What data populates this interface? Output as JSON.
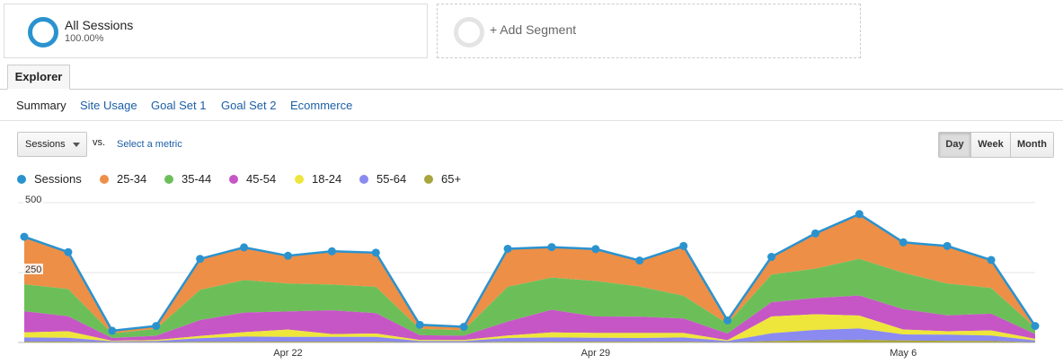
{
  "segments": [
    {
      "name": "All Sessions",
      "percent": "100.00%"
    },
    {
      "name": "+ Add Segment"
    }
  ],
  "tabs": {
    "active": "Explorer"
  },
  "subtabs": [
    "Summary",
    "Site Usage",
    "Goal Set 1",
    "Goal Set 2",
    "Ecommerce"
  ],
  "controls": {
    "metric": "Sessions",
    "vs": "vs.",
    "select_metric": "Select a metric",
    "granularity": [
      "Day",
      "Week",
      "Month"
    ],
    "granularity_active": "Day"
  },
  "colors": {
    "accent": "#2a93cf",
    "link": "#1c5fa6"
  },
  "chart_data": {
    "type": "area",
    "stacked": true,
    "y_ticks": [
      "500",
      "250"
    ],
    "ylim": [
      0,
      500
    ],
    "x_labels": [
      {
        "label": "Apr 22",
        "index": 6
      },
      {
        "label": "Apr 29",
        "index": 13
      },
      {
        "label": "May 6",
        "index": 20
      }
    ],
    "legend": [
      {
        "name": "Sessions",
        "color": "#2a93cf"
      },
      {
        "name": "25-34",
        "color": "#ed8f47"
      },
      {
        "name": "35-44",
        "color": "#6cbf58"
      },
      {
        "name": "45-54",
        "color": "#c656c5"
      },
      {
        "name": "18-24",
        "color": "#eee63a"
      },
      {
        "name": "55-64",
        "color": "#8a8af0"
      },
      {
        "name": "65+",
        "color": "#a8a63c"
      }
    ],
    "sessions": [
      378,
      323,
      42,
      59,
      299,
      340,
      310,
      326,
      321,
      63,
      56,
      335,
      341,
      334,
      293,
      345,
      79,
      306,
      390,
      459,
      358,
      345,
      295,
      59
    ],
    "stack_order": [
      "65+",
      "55-64",
      "18-24",
      "45-54",
      "35-44",
      "25-34"
    ],
    "series": [
      {
        "name": "65+",
        "values": [
          3,
          3,
          1,
          1,
          3,
          3,
          3,
          3,
          3,
          1,
          1,
          3,
          3,
          3,
          3,
          3,
          1,
          5,
          8,
          10,
          7,
          6,
          5,
          1
        ]
      },
      {
        "name": "55-64",
        "values": [
          15,
          14,
          3,
          4,
          12,
          18,
          17,
          17,
          17,
          4,
          4,
          13,
          15,
          14,
          13,
          15,
          4,
          28,
          37,
          40,
          22,
          22,
          20,
          6
        ]
      },
      {
        "name": "18-24",
        "values": [
          18,
          23,
          2,
          4,
          8,
          16,
          26,
          10,
          12,
          4,
          4,
          9,
          18,
          17,
          18,
          16,
          3,
          60,
          56,
          46,
          17,
          12,
          18,
          6
        ]
      },
      {
        "name": "45-54",
        "values": [
          76,
          54,
          10,
          15,
          57,
          70,
          65,
          85,
          73,
          17,
          15,
          50,
          81,
          59,
          58,
          52,
          24,
          51,
          58,
          72,
          73,
          57,
          60,
          17
        ]
      },
      {
        "name": "35-44",
        "values": [
          96,
          97,
          16,
          25,
          108,
          116,
          100,
          92,
          94,
          23,
          20,
          124,
          115,
          127,
          108,
          81,
          35,
          99,
          105,
          131,
          130,
          114,
          92,
          24
        ]
      },
      {
        "name": "25-34",
        "values": [
          170,
          132,
          10,
          10,
          111,
          117,
          99,
          119,
          122,
          14,
          12,
          136,
          109,
          114,
          93,
          178,
          12,
          63,
          126,
          160,
          109,
          134,
          100,
          5
        ]
      }
    ]
  }
}
